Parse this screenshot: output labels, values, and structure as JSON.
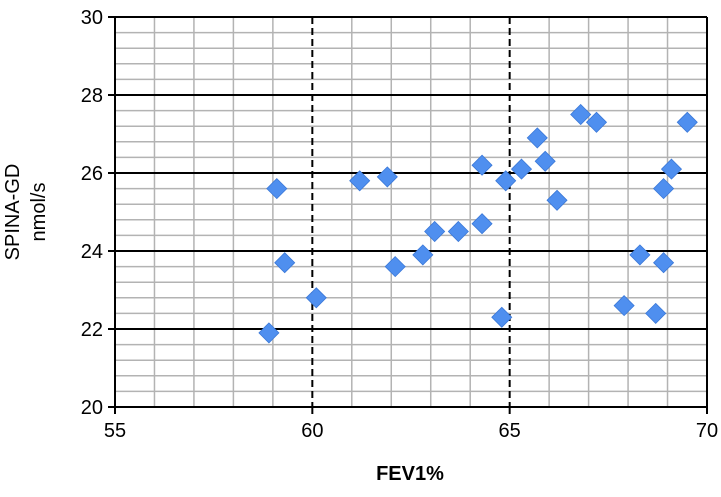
{
  "chart_data": {
    "type": "scatter",
    "xlabel": "FEV1%",
    "ylabel": "SPINA-GD",
    "ylabel_unit": "nmol/s",
    "xlim": [
      55,
      70
    ],
    "ylim": [
      20,
      30
    ],
    "x_ticks": [
      "55",
      "60",
      "65",
      "70"
    ],
    "y_ticks": [
      "20",
      "22",
      "24",
      "26",
      "28",
      "30"
    ],
    "x_major_step": 5,
    "x_minor_step": 1,
    "y_major_step": 2,
    "y_minor_step": 0.4,
    "major_gridlines": "dashed vertical / solid horizontal",
    "minor_gridlines": true,
    "marker": "diamond",
    "marker_color": "#4F8FEF",
    "points": [
      {
        "x": 58.9,
        "y": 21.9
      },
      {
        "x": 59.1,
        "y": 25.6
      },
      {
        "x": 59.3,
        "y": 23.7
      },
      {
        "x": 60.1,
        "y": 22.8
      },
      {
        "x": 61.2,
        "y": 25.8
      },
      {
        "x": 61.9,
        "y": 25.9
      },
      {
        "x": 62.1,
        "y": 23.6
      },
      {
        "x": 62.8,
        "y": 23.9
      },
      {
        "x": 63.1,
        "y": 24.5
      },
      {
        "x": 63.7,
        "y": 24.5
      },
      {
        "x": 64.3,
        "y": 24.7
      },
      {
        "x": 64.3,
        "y": 26.2
      },
      {
        "x": 64.8,
        "y": 22.3
      },
      {
        "x": 64.9,
        "y": 25.8
      },
      {
        "x": 65.3,
        "y": 26.1
      },
      {
        "x": 65.7,
        "y": 26.9
      },
      {
        "x": 65.9,
        "y": 26.3
      },
      {
        "x": 66.2,
        "y": 25.3
      },
      {
        "x": 66.8,
        "y": 27.5
      },
      {
        "x": 67.2,
        "y": 27.3
      },
      {
        "x": 67.9,
        "y": 22.6
      },
      {
        "x": 68.3,
        "y": 23.9
      },
      {
        "x": 68.7,
        "y": 22.4
      },
      {
        "x": 68.9,
        "y": 25.6
      },
      {
        "x": 68.9,
        "y": 23.7
      },
      {
        "x": 69.1,
        "y": 26.1
      },
      {
        "x": 69.5,
        "y": 27.3
      }
    ]
  }
}
